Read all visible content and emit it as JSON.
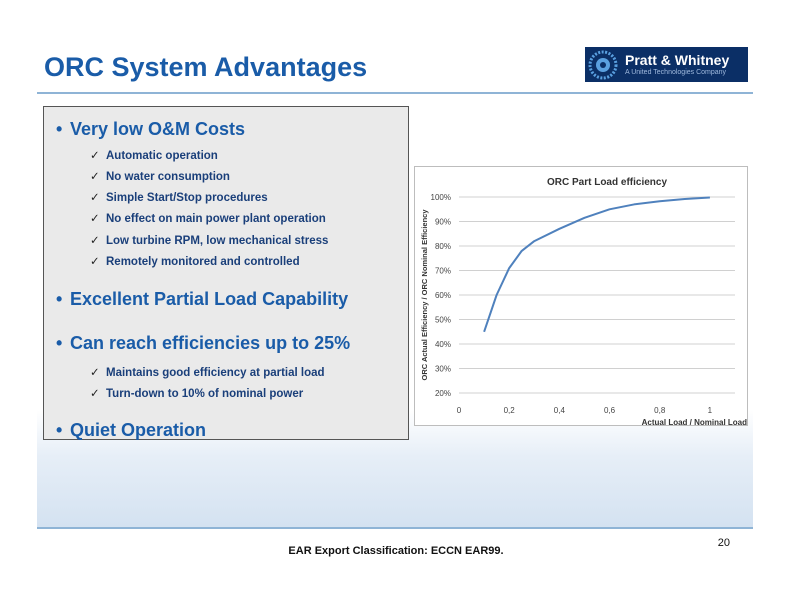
{
  "slide": {
    "title": "ORC System Advantages",
    "page_number": "20",
    "footer": "EAR Export Classification: ECCN EAR99."
  },
  "logo": {
    "name": "Pratt & Whitney",
    "subtitle": "A United Technologies Company"
  },
  "bullets": [
    {
      "text": "Very low O&M Costs",
      "subs": [
        "Automatic operation",
        "No water consumption",
        "Simple Start/Stop procedures",
        "No effect on main power plant operation",
        "Low turbine RPM, low mechanical stress",
        "Remotely monitored and controlled"
      ]
    },
    {
      "text": "Excellent Partial Load Capability",
      "subs": []
    },
    {
      "text": "Can reach efficiencies up to 25%",
      "subs": [
        "Maintains good efficiency at partial load",
        "Turn-down to 10% of nominal power"
      ]
    },
    {
      "text": "Quiet Operation",
      "subs": []
    }
  ],
  "chart_data": {
    "type": "line",
    "title": "ORC Part Load efficiency",
    "xlabel": "Actual Load  / Nominal Load",
    "ylabel": "ORC Actual Efficiency / ORC Nominal Efficiency",
    "x_ticks": [
      "0",
      "0,2",
      "0,4",
      "0,6",
      "0,8",
      "1"
    ],
    "y_ticks": [
      "20%",
      "30%",
      "40%",
      "50%",
      "60%",
      "70%",
      "80%",
      "90%",
      "100%"
    ],
    "xlim": [
      0,
      1.1
    ],
    "ylim": [
      20,
      100
    ],
    "grid": true,
    "series": [
      {
        "name": "ORC Part Load efficiency",
        "x": [
          0.1,
          0.15,
          0.2,
          0.25,
          0.3,
          0.4,
          0.5,
          0.6,
          0.7,
          0.8,
          0.9,
          1.0
        ],
        "y": [
          45,
          60,
          71,
          78,
          82,
          87,
          91.5,
          95,
          97,
          98.3,
          99.2,
          99.8
        ]
      }
    ]
  }
}
